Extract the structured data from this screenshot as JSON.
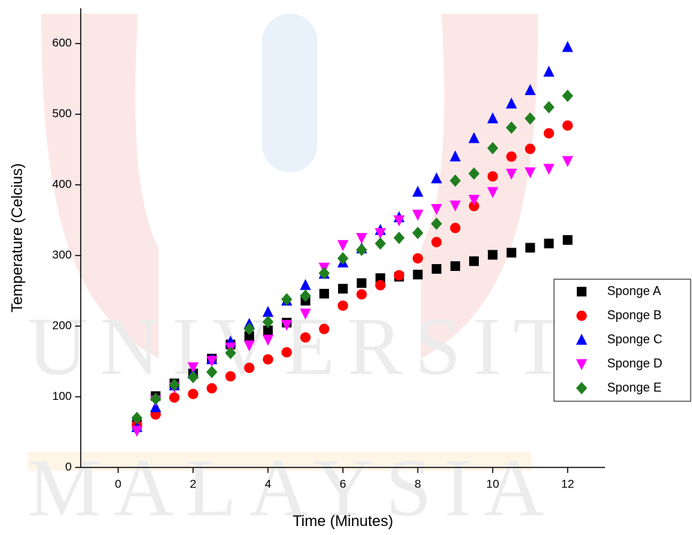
{
  "chart_data": {
    "type": "scatter",
    "watermark": [
      "UNIVERSITI",
      "MALAYSIA"
    ],
    "xlabel": "Time (Minutes)",
    "ylabel": "Temperature (Celcius)",
    "x": [
      0.5,
      1,
      1.5,
      2,
      2.5,
      3,
      3.5,
      4,
      4.5,
      5,
      5.5,
      6,
      6.5,
      7,
      7.5,
      8,
      8.5,
      9,
      9.5,
      10,
      10.5,
      11,
      11.5,
      12
    ],
    "xlim": [
      -1,
      13
    ],
    "xticks": [
      0,
      2,
      4,
      6,
      8,
      10,
      12
    ],
    "ylim": [
      0,
      650
    ],
    "yticks": [
      0,
      100,
      200,
      300,
      400,
      500,
      600
    ],
    "grid": false,
    "legend": "right",
    "series": [
      {
        "name": "Sponge A",
        "color": "#000000",
        "marker": "square",
        "values": [
          61,
          101,
          119,
          133,
          154,
          174,
          186,
          194,
          205,
          236,
          246,
          253,
          261,
          268,
          270,
          273,
          281,
          285,
          292,
          301,
          304,
          311,
          317,
          322
        ]
      },
      {
        "name": "Sponge B",
        "color": "#ff0000",
        "marker": "circle",
        "values": [
          60,
          75,
          99,
          104,
          112,
          129,
          141,
          153,
          163,
          184,
          196,
          229,
          245,
          258,
          272,
          296,
          319,
          339,
          370,
          412,
          440,
          451,
          473,
          484
        ]
      },
      {
        "name": "Sponge C",
        "color": "#0000ff",
        "marker": "triangle-up",
        "values": [
          57,
          85,
          116,
          133,
          153,
          178,
          203,
          220,
          236,
          258,
          274,
          290,
          310,
          336,
          354,
          390,
          409,
          440,
          466,
          494,
          515,
          534,
          560,
          595
        ]
      },
      {
        "name": "Sponge D",
        "color": "#ff00ff",
        "marker": "triangle-down",
        "values": [
          52,
          95,
          114,
          142,
          151,
          170,
          173,
          181,
          202,
          218,
          283,
          315,
          325,
          332,
          350,
          358,
          366,
          371,
          379,
          390,
          416,
          418,
          423,
          434
        ]
      },
      {
        "name": "Sponge E",
        "color": "#1f7f1f",
        "marker": "diamond",
        "values": [
          70,
          97,
          117,
          128,
          135,
          162,
          196,
          206,
          238,
          243,
          275,
          296,
          308,
          317,
          325,
          332,
          345,
          406,
          416,
          452,
          481,
          494,
          510,
          526
        ]
      }
    ]
  }
}
